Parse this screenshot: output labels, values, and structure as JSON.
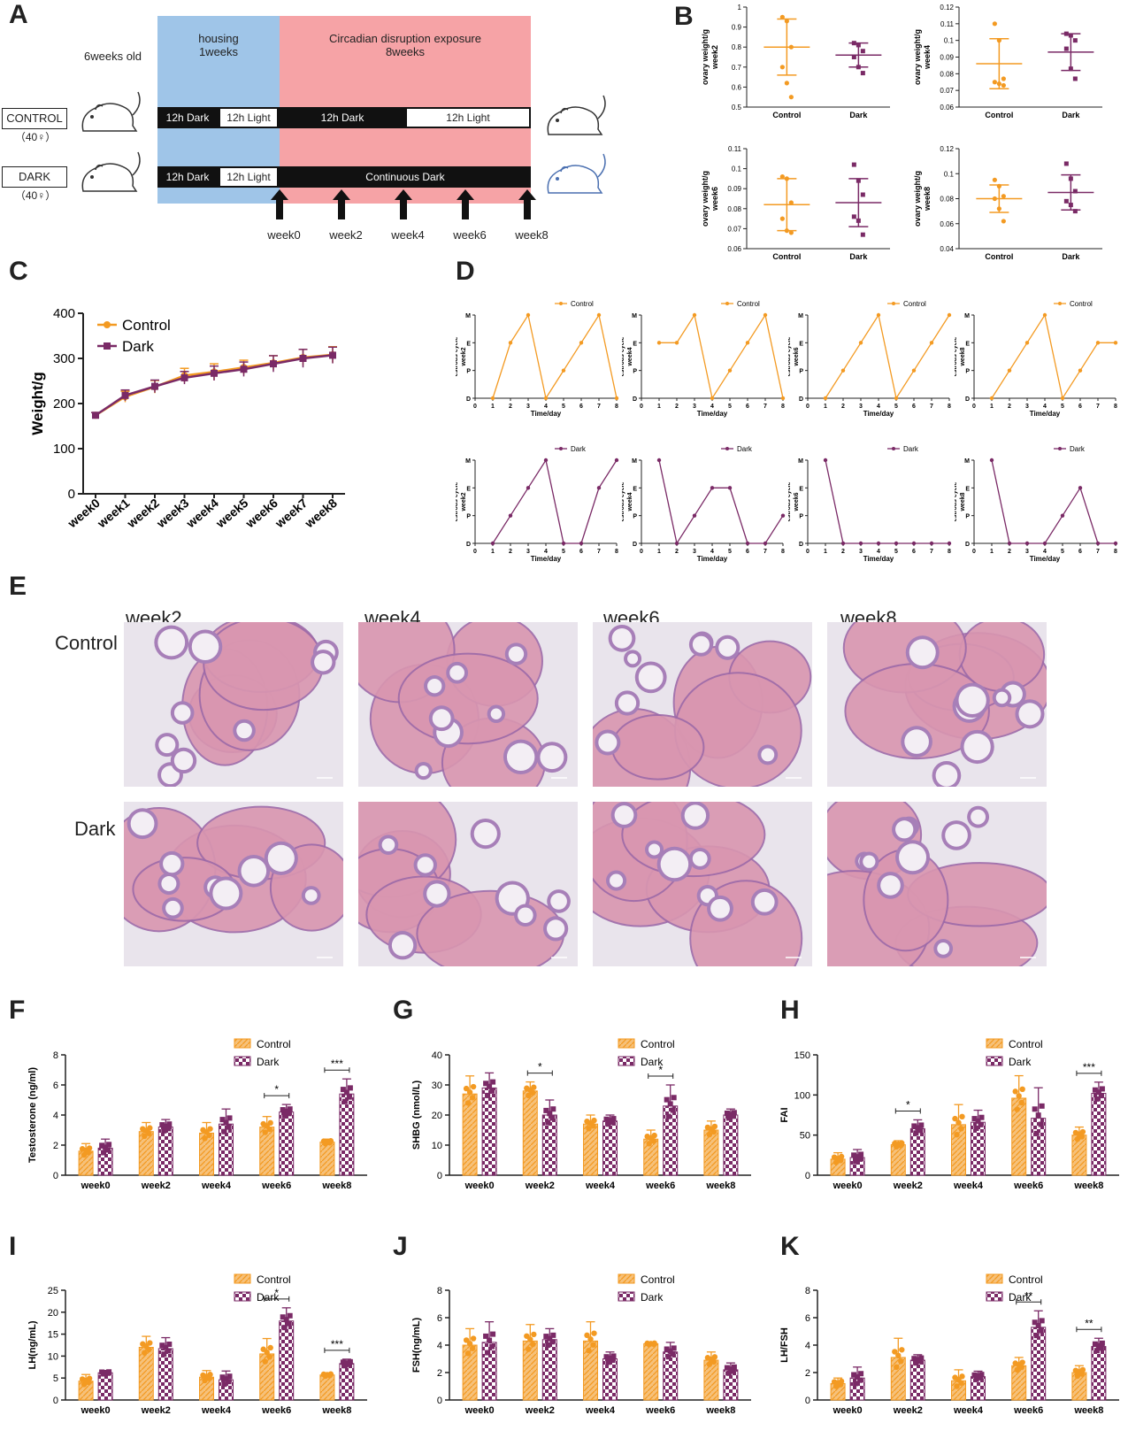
{
  "colors": {
    "control": "#F39A22",
    "dark": "#7A2A66",
    "housing": "#9FC5E8",
    "exposure": "#F6A3A6",
    "axis": "#222222"
  },
  "panelA": {
    "label": "A",
    "age": "6weeks old",
    "housing": "housing\n1weeks",
    "exposure": "Circadian disruption exposure\n8weeks",
    "groups": [
      {
        "name": "CONTROL",
        "n": "（40♀）"
      },
      {
        "name": "DARK",
        "n": "（40♀）"
      }
    ],
    "bars": {
      "dark12": "12h Dark",
      "light12": "12h Light",
      "continuous": "Continuous Dark"
    },
    "weeks": [
      "week0",
      "week2",
      "week4",
      "week6",
      "week8"
    ]
  },
  "panelB": {
    "label": "B"
  },
  "panelC": {
    "label": "C"
  },
  "panelD": {
    "label": "D"
  },
  "panelE": {
    "label": "E",
    "rows": [
      "Control",
      "Dark"
    ],
    "cols": [
      "week2",
      "week4",
      "week6",
      "week8"
    ],
    "icons": [
      "histology-image"
    ]
  },
  "panelF": {
    "label": "F"
  },
  "panelG": {
    "label": "G"
  },
  "panelH": {
    "label": "H"
  },
  "panelI": {
    "label": "I"
  },
  "panelJ": {
    "label": "J"
  },
  "panelK": {
    "label": "K"
  },
  "chart_data": [
    {
      "id": "B1",
      "type": "scatter",
      "ylabel": "ovary weight/g\nweek2",
      "categories": [
        "Control",
        "Dark"
      ],
      "ylim": [
        0.5,
        1.0
      ],
      "yticks": [
        0.5,
        0.6,
        0.7,
        0.8,
        0.9,
        1.0
      ],
      "series": [
        {
          "mean": 0.8,
          "sd": 0.14,
          "points": [
            0.95,
            0.93,
            0.8,
            0.7,
            0.62,
            0.55
          ]
        },
        {
          "mean": 0.76,
          "sd": 0.06,
          "points": [
            0.82,
            0.81,
            0.78,
            0.75,
            0.7,
            0.67
          ]
        }
      ]
    },
    {
      "id": "B2",
      "type": "scatter",
      "ylabel": "ovary weight/g\nweek4",
      "categories": [
        "Control",
        "Dark"
      ],
      "ylim": [
        0.06,
        0.12
      ],
      "yticks": [
        0.06,
        0.07,
        0.08,
        0.09,
        0.1,
        0.11,
        0.12
      ],
      "series": [
        {
          "mean": 0.086,
          "sd": 0.015,
          "points": [
            0.11,
            0.1,
            0.077,
            0.075,
            0.074,
            0.073
          ]
        },
        {
          "mean": 0.093,
          "sd": 0.011,
          "points": [
            0.104,
            0.103,
            0.1,
            0.095,
            0.083,
            0.077
          ]
        }
      ]
    },
    {
      "id": "B3",
      "type": "scatter",
      "ylabel": "ovary weight/g\nweek6",
      "categories": [
        "Control",
        "Dark"
      ],
      "ylim": [
        0.06,
        0.11
      ],
      "yticks": [
        0.06,
        0.07,
        0.08,
        0.09,
        0.1,
        0.11
      ],
      "series": [
        {
          "mean": 0.082,
          "sd": 0.013,
          "points": [
            0.096,
            0.095,
            0.083,
            0.075,
            0.069,
            0.068
          ]
        },
        {
          "mean": 0.083,
          "sd": 0.012,
          "points": [
            0.102,
            0.094,
            0.087,
            0.076,
            0.074,
            0.067
          ]
        }
      ]
    },
    {
      "id": "B4",
      "type": "scatter",
      "ylabel": "ovary weight/g\nweek8",
      "categories": [
        "Control",
        "Dark"
      ],
      "ylim": [
        0.04,
        0.12
      ],
      "yticks": [
        0.04,
        0.06,
        0.08,
        0.1,
        0.12
      ],
      "series": [
        {
          "mean": 0.08,
          "sd": 0.011,
          "points": [
            0.095,
            0.09,
            0.082,
            0.08,
            0.072,
            0.062
          ]
        },
        {
          "mean": 0.085,
          "sd": 0.014,
          "points": [
            0.108,
            0.096,
            0.086,
            0.078,
            0.075,
            0.07
          ]
        }
      ]
    },
    {
      "id": "C",
      "type": "line",
      "ylabel": "Weight/g",
      "categories": [
        "week0",
        "week1",
        "week2",
        "week3",
        "week4",
        "week5",
        "week6",
        "week7",
        "week8"
      ],
      "ylim": [
        0,
        400
      ],
      "yticks": [
        0,
        100,
        200,
        300,
        400
      ],
      "legend": [
        "Control",
        "Dark"
      ],
      "series": [
        {
          "name": "Control",
          "values": [
            174,
            215,
            237,
            262,
            270,
            280,
            290,
            302,
            308
          ],
          "err": [
            6,
            12,
            14,
            16,
            18,
            16,
            16,
            18,
            18
          ]
        },
        {
          "name": "Dark",
          "values": [
            174,
            218,
            238,
            257,
            267,
            276,
            288,
            300,
            307
          ],
          "err": [
            6,
            12,
            14,
            14,
            16,
            16,
            18,
            20,
            18
          ]
        }
      ]
    },
    {
      "id": "D1",
      "type": "line",
      "ylabel": "estrous cycle\nweek2",
      "legend": "Control",
      "series": [
        0,
        2,
        3,
        0,
        1,
        2,
        3,
        0
      ]
    },
    {
      "id": "D2",
      "type": "line",
      "ylabel": "estrous cycle\nweek4",
      "legend": "Control",
      "series": [
        2,
        2,
        3,
        0,
        1,
        2,
        3,
        0
      ]
    },
    {
      "id": "D3",
      "type": "line",
      "ylabel": "estrous cycle\nweek6",
      "legend": "Control",
      "series": [
        0,
        1,
        2,
        3,
        0,
        1,
        2,
        3
      ]
    },
    {
      "id": "D4",
      "type": "line",
      "ylabel": "estrous cycle\nweek8",
      "legend": "Control",
      "series": [
        0,
        1,
        2,
        3,
        0,
        1,
        2,
        2
      ]
    },
    {
      "id": "D5",
      "type": "line",
      "ylabel": "estrous cycle\nweek2",
      "legend": "Dark",
      "series": [
        0,
        1,
        2,
        3,
        0,
        0,
        2,
        3
      ]
    },
    {
      "id": "D6",
      "type": "line",
      "ylabel": "estrous cycle\nweek4",
      "legend": "Dark",
      "series": [
        3,
        0,
        1,
        2,
        2,
        0,
        0,
        1
      ]
    },
    {
      "id": "D7",
      "type": "line",
      "ylabel": "estrous cycle\nweek6",
      "legend": "Dark",
      "series": [
        3,
        0,
        0,
        0,
        0,
        0,
        0,
        0
      ]
    },
    {
      "id": "D8",
      "type": "line",
      "ylabel": "estrous cycle\nweek8",
      "legend": "Dark",
      "series": [
        3,
        0,
        0,
        0,
        1,
        2,
        0,
        0
      ]
    },
    {
      "id": "F",
      "type": "bar",
      "ylabel": "Testosterone (ng/ml)",
      "categories": [
        "week0",
        "week2",
        "week4",
        "week6",
        "week8"
      ],
      "ylim": [
        0,
        8
      ],
      "yticks": [
        0,
        2,
        4,
        6,
        8
      ],
      "legend": [
        "Control",
        "Dark"
      ],
      "series": [
        {
          "name": "Control",
          "values": [
            1.6,
            2.9,
            2.8,
            3.2,
            2.2
          ],
          "err": [
            0.5,
            0.6,
            0.7,
            0.7,
            0.2
          ]
        },
        {
          "name": "Dark",
          "values": [
            1.8,
            3.2,
            3.4,
            4.2,
            5.4
          ],
          "err": [
            0.6,
            0.5,
            1.0,
            0.5,
            1.0
          ]
        }
      ],
      "sig": [
        {
          "cat": 3,
          "label": "*"
        },
        {
          "cat": 4,
          "label": "***"
        }
      ]
    },
    {
      "id": "G",
      "type": "bar",
      "ylabel": "SHBG (nmol/L)",
      "categories": [
        "week0",
        "week2",
        "week4",
        "week6",
        "week8"
      ],
      "ylim": [
        0,
        40
      ],
      "yticks": [
        0,
        10,
        20,
        30,
        40
      ],
      "legend": [
        "Control",
        "Dark"
      ],
      "series": [
        {
          "name": "Control",
          "values": [
            27,
            28,
            17,
            12,
            15
          ],
          "err": [
            6,
            3,
            3,
            3,
            3
          ]
        },
        {
          "name": "Dark",
          "values": [
            29,
            20,
            18,
            23,
            20
          ],
          "err": [
            5,
            5,
            2,
            7,
            2
          ]
        }
      ],
      "sig": [
        {
          "cat": 1,
          "label": "*"
        },
        {
          "cat": 3,
          "label": "*"
        }
      ]
    },
    {
      "id": "H",
      "type": "bar",
      "ylabel": "FAI",
      "categories": [
        "week0",
        "week2",
        "week4",
        "week6",
        "week8"
      ],
      "ylim": [
        0,
        150
      ],
      "yticks": [
        0,
        50,
        100,
        150
      ],
      "legend": [
        "Control",
        "Dark"
      ],
      "series": [
        {
          "name": "Control",
          "values": [
            20,
            38,
            63,
            96,
            50
          ],
          "err": [
            8,
            5,
            25,
            28,
            10
          ]
        },
        {
          "name": "Dark",
          "values": [
            22,
            58,
            66,
            71,
            102
          ],
          "err": [
            10,
            11,
            15,
            38,
            14
          ]
        }
      ],
      "sig": [
        {
          "cat": 1,
          "label": "*"
        },
        {
          "cat": 4,
          "label": "***"
        }
      ]
    },
    {
      "id": "I",
      "type": "bar",
      "ylabel": "LH(ng/mL)",
      "categories": [
        "week0",
        "week2",
        "week4",
        "week6",
        "week8"
      ],
      "ylim": [
        0,
        25
      ],
      "yticks": [
        0,
        5,
        10,
        15,
        20,
        25
      ],
      "legend": [
        "Control",
        "Dark"
      ],
      "series": [
        {
          "name": "Control",
          "values": [
            4.3,
            12,
            5.2,
            10.5,
            5.7
          ],
          "err": [
            1.5,
            2.5,
            1.5,
            3.5,
            0.5
          ]
        },
        {
          "name": "Dark",
          "values": [
            6.2,
            11.7,
            4.6,
            18,
            8.3
          ],
          "err": [
            0.5,
            2.5,
            2,
            3,
            1
          ]
        }
      ],
      "sig": [
        {
          "cat": 3,
          "label": "*"
        },
        {
          "cat": 4,
          "label": "***"
        }
      ]
    },
    {
      "id": "J",
      "type": "bar",
      "ylabel": "FSH(ng/mL)",
      "categories": [
        "week0",
        "week2",
        "week4",
        "week6",
        "week8"
      ],
      "ylim": [
        0,
        8
      ],
      "yticks": [
        0,
        2,
        4,
        6,
        8
      ],
      "legend": [
        "Control",
        "Dark"
      ],
      "series": [
        {
          "name": "Control",
          "values": [
            4.0,
            4.3,
            4.3,
            4.1,
            2.9
          ],
          "err": [
            1.2,
            1.2,
            1.4,
            0.1,
            0.6
          ]
        },
        {
          "name": "Dark",
          "values": [
            4.2,
            4.4,
            3.0,
            3.5,
            2.2
          ],
          "err": [
            1.5,
            0.8,
            0.5,
            0.7,
            0.5
          ]
        }
      ],
      "sig": []
    },
    {
      "id": "K",
      "type": "bar",
      "ylabel": "LH/FSH",
      "categories": [
        "week0",
        "week2",
        "week4",
        "week6",
        "week8"
      ],
      "ylim": [
        0,
        8
      ],
      "yticks": [
        0,
        2,
        4,
        6,
        8
      ],
      "legend": [
        "Control",
        "Dark"
      ],
      "series": [
        {
          "name": "Control",
          "values": [
            1.2,
            3.1,
            1.4,
            2.5,
            2.0
          ],
          "err": [
            0.4,
            1.4,
            0.8,
            0.6,
            0.5
          ]
        },
        {
          "name": "Dark",
          "values": [
            1.6,
            2.9,
            1.7,
            5.3,
            3.9
          ],
          "err": [
            0.8,
            0.4,
            0.4,
            1.2,
            0.6
          ]
        }
      ],
      "sig": [
        {
          "cat": 3,
          "label": "**"
        },
        {
          "cat": 4,
          "label": "**"
        }
      ]
    }
  ]
}
